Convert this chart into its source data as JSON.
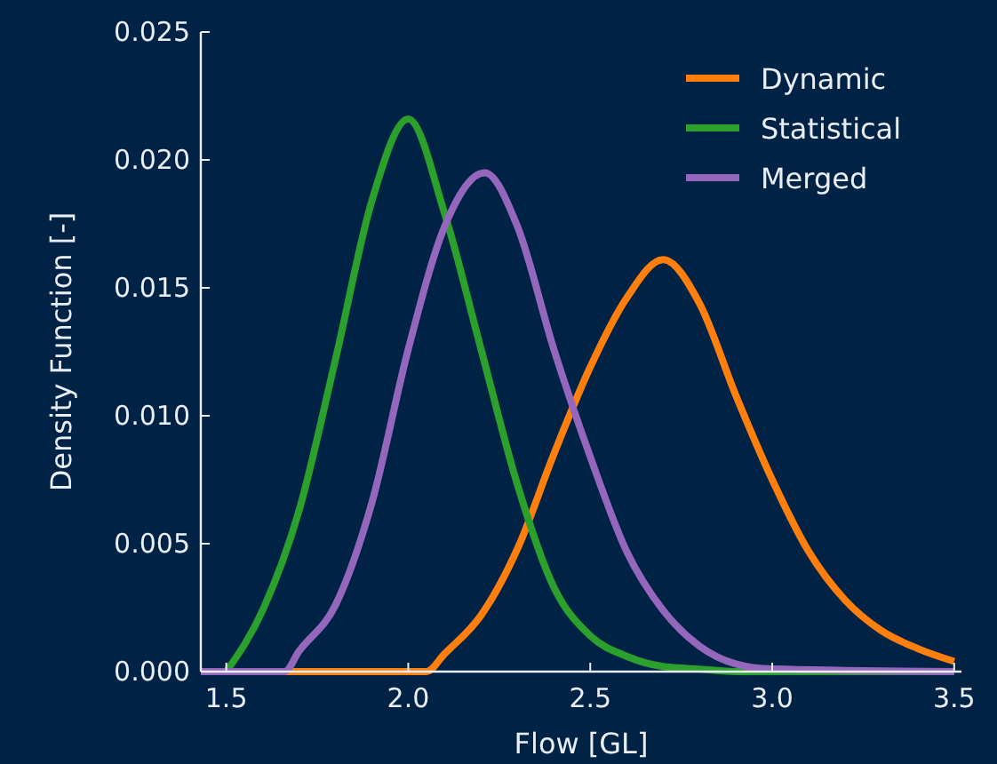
{
  "chart_data": {
    "type": "line",
    "xlabel": "Flow [GL]",
    "ylabel": "Density Function [-]",
    "xlim": [
      1.43,
      3.52
    ],
    "ylim": [
      0,
      0.025
    ],
    "xticks": [
      {
        "value": 1.5,
        "label": "1.5"
      },
      {
        "value": 2,
        "label": "2.0"
      },
      {
        "value": 2.5,
        "label": "2.5"
      },
      {
        "value": 3,
        "label": "3.0"
      },
      {
        "value": 3.5,
        "label": "3.5"
      }
    ],
    "yticks": [
      {
        "value": 0,
        "label": "0.000"
      },
      {
        "value": 0.005,
        "label": "0.005"
      },
      {
        "value": 0.01,
        "label": "0.010"
      },
      {
        "value": 0.015,
        "label": "0.015"
      },
      {
        "value": 0.02,
        "label": "0.020"
      },
      {
        "value": 0.025,
        "label": "0.025"
      }
    ],
    "grid": false,
    "legend": "top right",
    "line_style": "solid",
    "marker": "none",
    "series": [
      {
        "name": "Dynamic",
        "color": "#ff7f0e",
        "x": [
          1.43,
          2.05,
          2.1,
          2.2,
          2.3,
          2.4,
          2.5,
          2.6,
          2.7,
          2.8,
          2.9,
          3.0,
          3.1,
          3.2,
          3.3,
          3.4,
          3.5
        ],
        "values": [
          0,
          0,
          0.0007,
          0.0022,
          0.0048,
          0.0085,
          0.0119,
          0.0146,
          0.0161,
          0.0144,
          0.0108,
          0.0075,
          0.0047,
          0.0028,
          0.0016,
          0.0009,
          0.0004
        ]
      },
      {
        "name": "Statistical",
        "color": "#2ca02c",
        "x": [
          1.5,
          1.6,
          1.7,
          1.8,
          1.9,
          2.0,
          2.1,
          2.2,
          2.3,
          2.4,
          2.5,
          2.6,
          2.7,
          2.8,
          2.9,
          3.5
        ],
        "values": [
          0,
          0.0024,
          0.0063,
          0.0122,
          0.0184,
          0.0216,
          0.0179,
          0.0126,
          0.0073,
          0.0033,
          0.0014,
          0.0006,
          0.0002,
          0.0001,
          0,
          0
        ]
      },
      {
        "name": "Merged",
        "color": "#9467bd",
        "x": [
          1.43,
          1.66,
          1.7,
          1.8,
          1.9,
          2.0,
          2.1,
          2.21,
          2.3,
          2.4,
          2.5,
          2.6,
          2.7,
          2.8,
          2.9,
          3.0,
          3.5
        ],
        "values": [
          0,
          0,
          0.0008,
          0.0026,
          0.0066,
          0.0126,
          0.0174,
          0.0195,
          0.0174,
          0.0126,
          0.0084,
          0.0047,
          0.0024,
          0.001,
          0.0003,
          0.0001,
          0
        ]
      }
    ]
  }
}
